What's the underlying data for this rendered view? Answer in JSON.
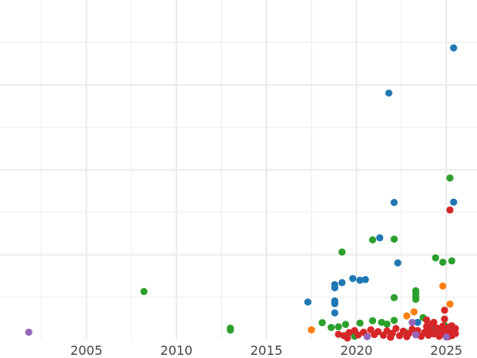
{
  "chart_data": {
    "type": "scatter",
    "title": "",
    "xlabel": "",
    "ylabel": "",
    "x_ticks": [
      "2005",
      "2010",
      "2015",
      "2020",
      "2025"
    ],
    "xlim": [
      2000.2,
      2026.7
    ],
    "ylim": [
      0,
      100
    ],
    "grid": true,
    "grid_color": "#ebebeb",
    "background": "#ffffff",
    "legend": "none",
    "series": [
      {
        "color": "#1f77b4",
        "points": [
          [
            2025.4,
            85.9
          ],
          [
            2021.8,
            72.6
          ],
          [
            2022.1,
            40.4
          ],
          [
            2025.4,
            40.5
          ],
          [
            2021.3,
            30.0
          ],
          [
            2022.3,
            22.6
          ],
          [
            2019.8,
            18.0
          ],
          [
            2020.2,
            17.5
          ],
          [
            2020.5,
            17.7
          ],
          [
            2019.2,
            16.8
          ],
          [
            2018.8,
            16.2
          ],
          [
            2018.8,
            15.3
          ],
          [
            2017.3,
            11.1
          ],
          [
            2018.8,
            11.4
          ],
          [
            2018.8,
            10.6
          ],
          [
            2018.8,
            7.9
          ],
          [
            2023.4,
            5.1
          ],
          [
            2024.3,
            3.2
          ],
          [
            2024.8,
            2.1
          ]
        ]
      },
      {
        "color": "#2ca02c",
        "points": [
          [
            2008.2,
            14.2
          ],
          [
            2013.0,
            3.4
          ],
          [
            2013.0,
            2.8
          ],
          [
            2019.2,
            25.8
          ],
          [
            2020.9,
            29.4
          ],
          [
            2022.1,
            29.6
          ],
          [
            2024.4,
            24.1
          ],
          [
            2024.8,
            22.8
          ],
          [
            2025.3,
            23.2
          ],
          [
            2025.2,
            47.6
          ],
          [
            2023.3,
            14.4
          ],
          [
            2023.3,
            13.6
          ],
          [
            2023.3,
            12.7
          ],
          [
            2023.3,
            11.9
          ],
          [
            2022.1,
            12.4
          ],
          [
            2018.1,
            5.0
          ],
          [
            2018.6,
            3.6
          ],
          [
            2019.0,
            3.8
          ],
          [
            2019.4,
            4.5
          ],
          [
            2020.2,
            4.9
          ],
          [
            2020.9,
            5.6
          ],
          [
            2021.4,
            5.1
          ],
          [
            2021.7,
            4.6
          ],
          [
            2022.1,
            5.7
          ],
          [
            2023.7,
            6.5
          ],
          [
            2024.5,
            3.0
          ],
          [
            2024.9,
            4.2
          ],
          [
            2025.3,
            2.8
          ],
          [
            2019.9,
            1.0
          ],
          [
            2022.7,
            2.2
          ]
        ]
      },
      {
        "color": "#d62728",
        "points": [
          [
            2025.2,
            38.2
          ],
          [
            2024.9,
            8.7
          ],
          [
            2019.0,
            1.6
          ],
          [
            2019.3,
            1.2
          ],
          [
            2019.6,
            2.1
          ],
          [
            2019.9,
            2.7
          ],
          [
            2020.1,
            1.4
          ],
          [
            2020.4,
            2.2
          ],
          [
            2020.6,
            1.0
          ],
          [
            2020.8,
            2.9
          ],
          [
            2021.0,
            1.5
          ],
          [
            2021.2,
            2.4
          ],
          [
            2021.5,
            1.3
          ],
          [
            2021.7,
            2.6
          ],
          [
            2021.9,
            0.8
          ],
          [
            2022.0,
            1.9
          ],
          [
            2022.2,
            3.3
          ],
          [
            2022.4,
            1.2
          ],
          [
            2022.6,
            2.5
          ],
          [
            2022.8,
            0.9
          ],
          [
            2022.9,
            1.8
          ],
          [
            2023.1,
            3.1
          ],
          [
            2023.3,
            1.5
          ],
          [
            2023.4,
            2.7
          ],
          [
            2023.6,
            1.0
          ],
          [
            2023.8,
            2.2
          ],
          [
            2023.9,
            3.9
          ],
          [
            2024.0,
            1.3
          ],
          [
            2024.1,
            2.8
          ],
          [
            2024.2,
            4.6
          ],
          [
            2024.3,
            1.7
          ],
          [
            2024.5,
            3.4
          ],
          [
            2024.6,
            1.0
          ],
          [
            2024.7,
            2.5
          ],
          [
            2024.8,
            4.0
          ],
          [
            2024.9,
            1.6
          ],
          [
            2025.0,
            3.0
          ],
          [
            2025.1,
            2.1
          ],
          [
            2025.2,
            3.8
          ],
          [
            2025.3,
            1.2
          ],
          [
            2025.4,
            2.6
          ],
          [
            2025.5,
            3.3
          ],
          [
            2025.5,
            1.8
          ],
          [
            2025.3,
            4.1
          ],
          [
            2024.9,
            6.1
          ],
          [
            2023.9,
            5.8
          ],
          [
            2024.3,
            5.1
          ],
          [
            2025.1,
            0.9
          ],
          [
            2019.5,
            0.5
          ],
          [
            2021.9,
            0.7
          ]
        ]
      },
      {
        "color": "#ff7f0e",
        "points": [
          [
            2017.5,
            2.9
          ],
          [
            2024.8,
            15.8
          ],
          [
            2025.2,
            10.5
          ],
          [
            2023.2,
            8.2
          ],
          [
            2022.8,
            7.0
          ]
        ]
      },
      {
        "color": "#9467bd",
        "points": [
          [
            2001.8,
            2.2
          ],
          [
            2020.6,
            0.9
          ],
          [
            2023.3,
            1.4
          ],
          [
            2025.0,
            0.8
          ],
          [
            2023.1,
            5.1
          ]
        ]
      }
    ]
  }
}
